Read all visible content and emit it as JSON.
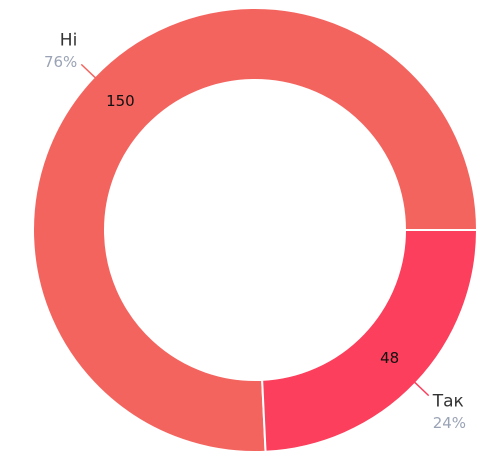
{
  "chart_data": {
    "type": "donut",
    "categories": [
      "Ні",
      "Так"
    ],
    "values": [
      150,
      48
    ],
    "percent_labels": [
      "76%",
      "24%"
    ],
    "colors": [
      "#f4645f",
      "#fb3f5c"
    ]
  }
}
